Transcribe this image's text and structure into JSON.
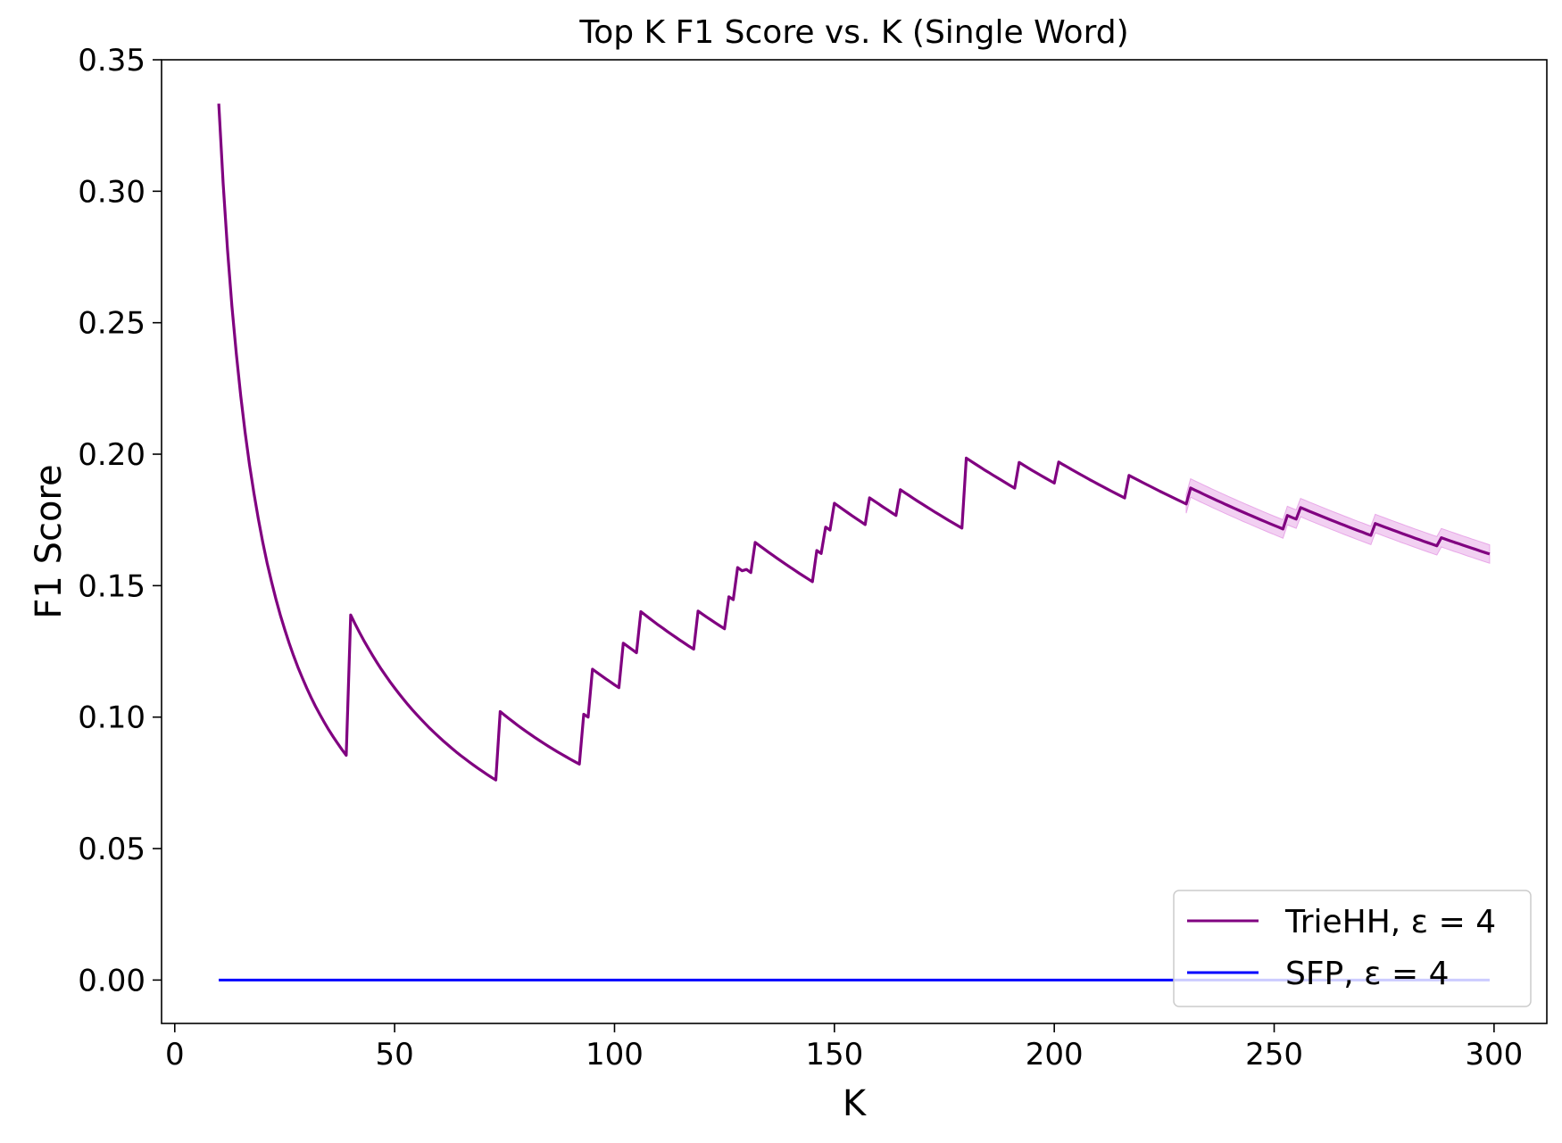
{
  "chart_data": {
    "type": "line",
    "title": "Top K F1 Score vs. K (Single Word)",
    "xlabel": "K",
    "ylabel": "F1 Score",
    "xlim": [
      -3,
      312
    ],
    "ylim": [
      -0.0165,
      0.35
    ],
    "x_ticks": [
      0,
      50,
      100,
      150,
      200,
      250,
      300
    ],
    "x_tick_labels": [
      "0",
      "50",
      "100",
      "150",
      "200",
      "250",
      "300"
    ],
    "y_ticks": [
      0.0,
      0.05,
      0.1,
      0.15,
      0.2,
      0.25,
      0.3,
      0.35
    ],
    "y_tick_labels": [
      "0.00",
      "0.05",
      "0.10",
      "0.15",
      "0.20",
      "0.25",
      "0.30",
      "0.35"
    ],
    "grid": false,
    "legend_position": "lower-right",
    "series": [
      {
        "name": "TrieHH, ε = 4",
        "color": "#800080",
        "band_color": "#f0c8f0",
        "segments": [
          {
            "ks": [
              10,
              39
            ],
            "c": 3.333
          },
          {
            "ks": [
              40,
              73
            ],
            "c": 5.554
          },
          {
            "ks": [
              74,
              92
            ],
            "c": 7.555
          },
          {
            "ks": [
              93,
              94
            ],
            "c": 9.4
          },
          {
            "ks": [
              95,
              101
            ],
            "c": 11.23
          },
          {
            "ks": [
              102,
              105
            ],
            "c": 13.07
          },
          {
            "ks": [
              106,
              118
            ],
            "c": 14.85
          },
          {
            "ks": [
              119,
              125
            ],
            "c": 16.7
          },
          {
            "ks": [
              126,
              127
            ],
            "c": 18.37
          },
          {
            "ks": [
              128,
              129
            ],
            "c": 20.08
          },
          {
            "ks": [
              130,
              131
            ],
            "c": 20.3
          },
          {
            "ks": [
              132,
              145
            ],
            "c": 21.97
          },
          {
            "ks": [
              146,
              147
            ],
            "c": 23.85
          },
          {
            "ks": [
              148,
              149
            ],
            "c": 25.5
          },
          {
            "ks": [
              150,
              157
            ],
            "c": 27.2
          },
          {
            "ks": [
              158,
              164
            ],
            "c": 28.98
          },
          {
            "ks": [
              165,
              179
            ],
            "c": 30.77
          },
          {
            "ks": [
              180,
              191
            ],
            "c": 35.73
          },
          {
            "ks": [
              192,
              200
            ],
            "c": 37.8
          },
          {
            "ks": [
              201,
              216
            ],
            "c": 39.6
          },
          {
            "ks": [
              217,
              230
            ],
            "c": 41.65
          },
          {
            "ks": [
              231,
              252
            ],
            "c": 43.23
          },
          {
            "ks": [
              253,
              255
            ],
            "c": 44.7
          },
          {
            "ks": [
              256,
              272
            ],
            "c": 46.0
          },
          {
            "ks": [
              273,
              287
            ],
            "c": 47.4
          },
          {
            "ks": [
              288,
              299
            ],
            "c": 48.45
          }
        ],
        "band": {
          "k_start": 230,
          "k_end": 299,
          "half_width": 0.0035
        }
      },
      {
        "name": "SFP, ε = 4",
        "color": "#0000ff",
        "x_range": [
          10,
          299
        ],
        "value": 0.0
      }
    ]
  }
}
